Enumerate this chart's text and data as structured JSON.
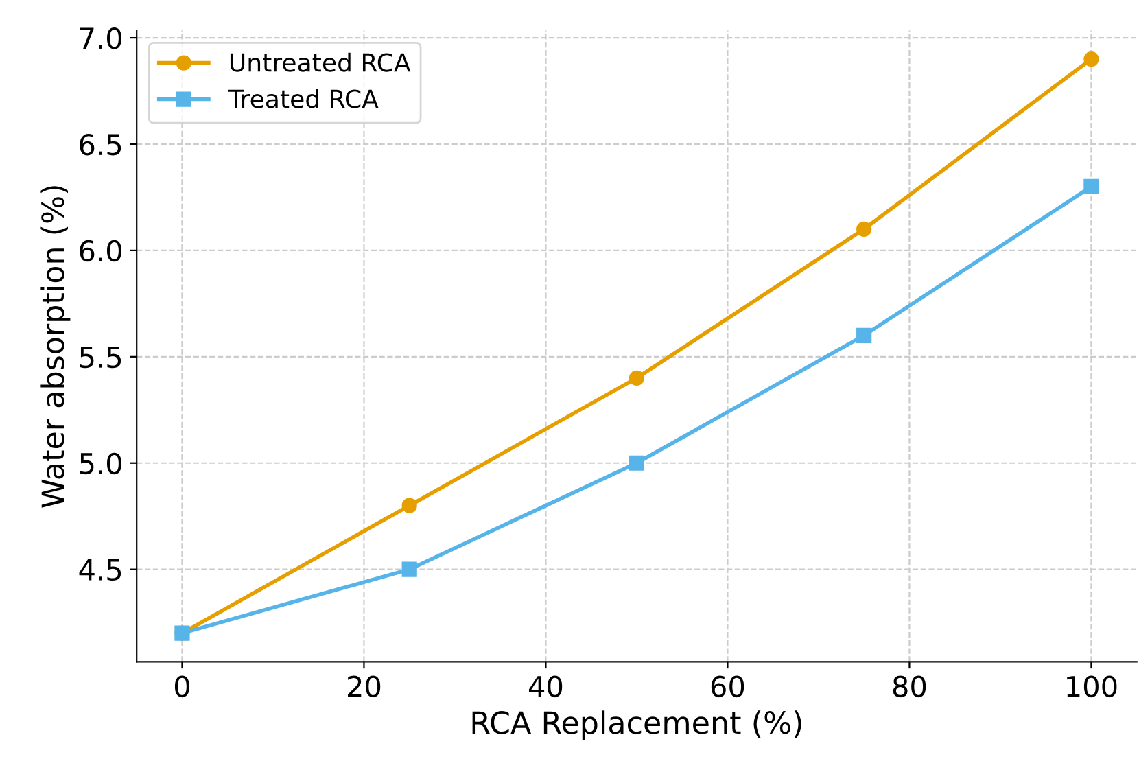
{
  "chart_data": {
    "type": "line",
    "xlabel": "RCA Replacement (%)",
    "ylabel": "Water absorption (%)",
    "x": [
      0,
      25,
      50,
      75,
      100
    ],
    "series": [
      {
        "name": "Untreated RCA",
        "color": "#e69f00",
        "values": [
          4.2,
          4.8,
          5.4,
          6.1,
          6.9
        ],
        "marker": "circle"
      },
      {
        "name": "Treated RCA",
        "color": "#56b4e9",
        "values": [
          4.2,
          4.5,
          5.0,
          5.6,
          6.3
        ],
        "marker": "square"
      }
    ],
    "xlim": [
      -5,
      105
    ],
    "ylim": [
      4.065,
      7.035
    ],
    "xticks": [
      0,
      20,
      40,
      60,
      80,
      100
    ],
    "yticks": [
      4.5,
      {
        "value": 5,
        "label": "5.0"
      },
      5.5,
      {
        "value": 6,
        "label": "6.0"
      },
      6.5,
      {
        "value": 7,
        "label": "7.0"
      }
    ],
    "grid": true,
    "legend": "top left",
    "line_style": "solid"
  }
}
